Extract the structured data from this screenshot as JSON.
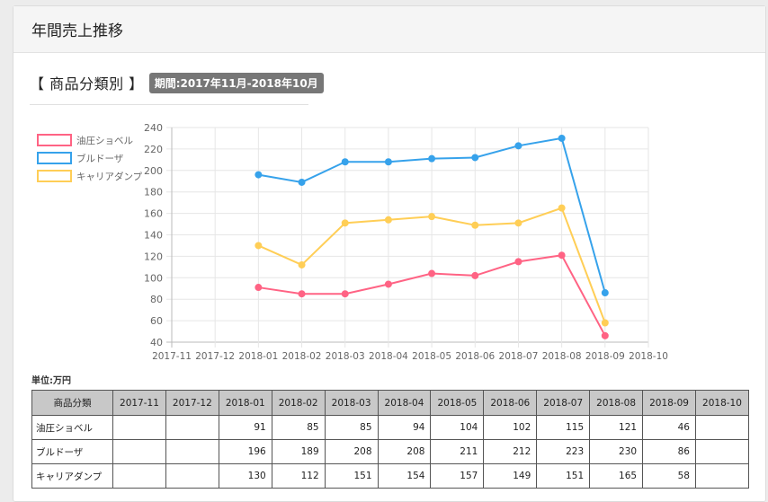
{
  "page": {
    "title": "年間売上推移"
  },
  "section": {
    "title": "【 商品分類別 】",
    "period": "期間:2017年11月-2018年10月"
  },
  "unit_label": "単位:万円",
  "colors": {
    "油圧ショベル": "#ff6384",
    "ブルドーザ": "#36a2eb",
    "キャリアダンプ": "#ffce56"
  },
  "chart_data": {
    "type": "line",
    "title": "",
    "xlabel": "",
    "ylabel": "",
    "categories": [
      "2017-11",
      "2017-12",
      "2018-01",
      "2018-02",
      "2018-03",
      "2018-04",
      "2018-05",
      "2018-06",
      "2018-07",
      "2018-08",
      "2018-09",
      "2018-10"
    ],
    "ylim": [
      40,
      240
    ],
    "yticks": [
      40,
      60,
      80,
      100,
      120,
      140,
      160,
      180,
      200,
      220,
      240
    ],
    "grid": true,
    "legend_position": "left",
    "series": [
      {
        "name": "油圧ショベル",
        "color": "#ff6384",
        "values": [
          null,
          null,
          91,
          85,
          85,
          94,
          104,
          102,
          115,
          121,
          46,
          null
        ]
      },
      {
        "name": "ブルドーザ",
        "color": "#36a2eb",
        "values": [
          null,
          null,
          196,
          189,
          208,
          208,
          211,
          212,
          223,
          230,
          86,
          null
        ]
      },
      {
        "name": "キャリアダンプ",
        "color": "#ffce56",
        "values": [
          null,
          null,
          130,
          112,
          151,
          154,
          157,
          149,
          151,
          165,
          58,
          null
        ]
      }
    ]
  },
  "table": {
    "header_first": "商品分類",
    "columns": [
      "2017-11",
      "2017-12",
      "2018-01",
      "2018-02",
      "2018-03",
      "2018-04",
      "2018-05",
      "2018-06",
      "2018-07",
      "2018-08",
      "2018-09",
      "2018-10"
    ],
    "rows": [
      {
        "label": "油圧ショベル",
        "values": [
          "",
          "",
          "91",
          "85",
          "85",
          "94",
          "104",
          "102",
          "115",
          "121",
          "46",
          ""
        ]
      },
      {
        "label": "ブルドーザ",
        "values": [
          "",
          "",
          "196",
          "189",
          "208",
          "208",
          "211",
          "212",
          "223",
          "230",
          "86",
          ""
        ]
      },
      {
        "label": "キャリアダンプ",
        "values": [
          "",
          "",
          "130",
          "112",
          "151",
          "154",
          "157",
          "149",
          "151",
          "165",
          "58",
          ""
        ]
      }
    ]
  }
}
